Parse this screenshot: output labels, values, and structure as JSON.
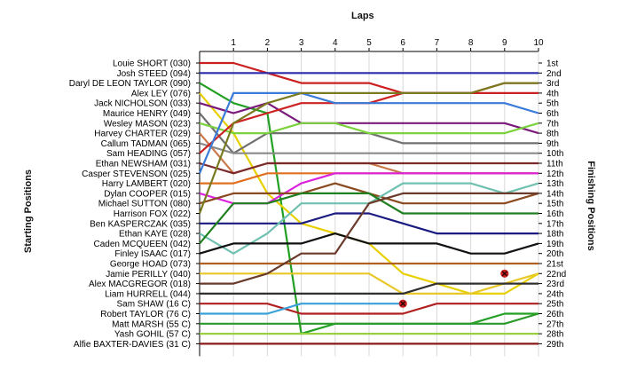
{
  "chart_data": {
    "type": "line",
    "title": "",
    "xlabel": "Laps",
    "ylabel_left": "Starting Positions",
    "ylabel_right": "Finishing Positions",
    "laps": [
      1,
      2,
      3,
      4,
      5,
      6,
      7,
      8,
      9,
      10
    ],
    "starting_labels": [
      "Louie SHORT (030)",
      "Josh STEED (094)",
      "Daryl DE LEON TAYLOR (090)",
      "Alex LEY (076)",
      "Jack NICHOLSON (033)",
      "Maurice HENRY (049)",
      "Wesley MASON (023)",
      "Harvey CHARTER (029)",
      "Callum TADMAN (065)",
      "Sam HEADING (057)",
      "Ethan NEWSHAM (031)",
      "Casper STEVENSON (025)",
      "Harry LAMBERT (020)",
      "Dylan COOPER (015)",
      "Michael SUTTON (080)",
      "Harrison FOX (022)",
      "Ben KASPERCZAK (035)",
      "Ethan KAYE (028)",
      "Caden MCQUEEN (042)",
      "Finley ISAAC (017)",
      "George HOAD (073)",
      "Jamie PERILLY (040)",
      "Alex MACGREGOR (018)",
      "Liam HURRELL (044)",
      "Sam SHAW (16 C)",
      "Robert TAYLOR (76 C)",
      "Matt MARSH (55 C)",
      "Yash GOHIL (57 C)",
      "Alfie BAXTER-DAVIES (31 C)"
    ],
    "finishing_labels": [
      "1st",
      "2nd",
      "3rd",
      "4th",
      "5th",
      "6th",
      "7th",
      "8th",
      "9th",
      "10th",
      "11th",
      "12th",
      "13th",
      "14th",
      "15th",
      "16th",
      "17th",
      "18th",
      "19th",
      "20th",
      "21st",
      "22nd",
      "23rd",
      "24th",
      "25th",
      "26th",
      "27th",
      "28th",
      "29th"
    ],
    "series": [
      {
        "color": "#cc1f1f",
        "positions": [
          1,
          1,
          2,
          3,
          3,
          3,
          4,
          4,
          4,
          4,
          4
        ]
      },
      {
        "color": "#2d2dab",
        "positions": [
          2,
          2,
          2,
          2,
          2,
          2,
          2,
          2,
          2,
          2,
          2
        ]
      },
      {
        "color": "#23a023",
        "positions": [
          3,
          5,
          6,
          28,
          27,
          27,
          27,
          27,
          27,
          26,
          26
        ]
      },
      {
        "color": "#e8d000",
        "positions": [
          4,
          8,
          14,
          17,
          18,
          19,
          22,
          23,
          24,
          24,
          22
        ]
      },
      {
        "color": "#7a1a7a",
        "positions": [
          5,
          6,
          5,
          7,
          7,
          7,
          7,
          7,
          7,
          7,
          8
        ]
      },
      {
        "color": "#707070",
        "positions": [
          6,
          10,
          8,
          8,
          8,
          8,
          9,
          9,
          9,
          9,
          9
        ]
      },
      {
        "color": "#7ad23c",
        "positions": [
          7,
          8,
          8,
          7,
          7,
          8,
          8,
          8,
          8,
          8,
          7
        ]
      },
      {
        "color": "#c9784a",
        "positions": [
          8,
          12,
          11,
          11,
          11,
          11,
          12,
          12,
          12,
          12,
          12
        ]
      },
      {
        "color": "#8a8a8a",
        "positions": [
          9,
          10,
          10,
          10,
          10,
          10,
          10,
          10,
          10,
          10,
          10
        ]
      },
      {
        "color": "#cc2222",
        "positions": [
          10,
          7,
          6,
          5,
          5,
          5,
          4,
          4,
          4,
          3,
          3
        ]
      },
      {
        "color": "#7a2a2a",
        "positions": [
          11,
          12,
          11,
          11,
          11,
          11,
          11,
          11,
          11,
          11,
          11
        ]
      },
      {
        "color": "#3a7ad8",
        "positions": [
          12,
          4,
          4,
          4,
          5,
          5,
          5,
          5,
          5,
          5,
          6
        ]
      },
      {
        "color": "#e07020",
        "positions": [
          13,
          13,
          12,
          12,
          12,
          12,
          12,
          12,
          12,
          12,
          12
        ]
      },
      {
        "color": "#dd22dd",
        "positions": [
          14,
          15,
          15,
          13,
          12,
          12,
          12,
          12,
          12,
          12,
          12
        ]
      },
      {
        "color": "#8a4a20",
        "positions": [
          15,
          14,
          14,
          14,
          13,
          14,
          15,
          15,
          15,
          15,
          14
        ]
      },
      {
        "color": "#7a7a20",
        "positions": [
          16,
          7,
          5,
          4,
          4,
          4,
          4,
          4,
          4,
          3,
          3
        ]
      },
      {
        "color": "#1a1a80",
        "positions": [
          17,
          17,
          17,
          17,
          16,
          16,
          17,
          18,
          18,
          18,
          18
        ]
      },
      {
        "color": "#70c0b0",
        "positions": [
          18,
          20,
          18,
          15,
          15,
          15,
          13,
          13,
          13,
          14,
          13
        ]
      },
      {
        "color": "#208020",
        "positions": [
          19,
          15,
          15,
          14,
          14,
          14,
          16,
          16,
          16,
          16,
          16
        ]
      },
      {
        "color": "#111111",
        "positions": [
          20,
          19,
          19,
          19,
          18,
          19,
          19,
          19,
          20,
          20,
          19
        ]
      },
      {
        "color": "#b06020",
        "positions": [
          21,
          21,
          21,
          21,
          21,
          21,
          21,
          21,
          21,
          21,
          21
        ]
      },
      {
        "color": "#e8c828",
        "positions": [
          22,
          22,
          22,
          22,
          22,
          22,
          24,
          24,
          24,
          23,
          22
        ]
      },
      {
        "color": "#6a3a2a",
        "positions": [
          23,
          23,
          22,
          20,
          20,
          15,
          14,
          14,
          14,
          14,
          14
        ]
      },
      {
        "color": "#303030",
        "positions": [
          24,
          24,
          24,
          24,
          24,
          24,
          24,
          23,
          23,
          23,
          23
        ]
      },
      {
        "color": "#b02020",
        "positions": [
          25,
          25,
          25,
          26,
          26,
          26,
          26,
          25,
          25,
          25,
          25
        ]
      },
      {
        "color": "#3aa0d8",
        "positions": [
          26,
          26,
          26,
          25,
          25,
          25,
          25
        ]
      },
      {
        "color": "#2a9a2a",
        "positions": [
          27,
          27,
          27,
          27,
          27,
          27,
          27,
          27,
          27,
          27,
          26
        ]
      },
      {
        "color": "#9ad040",
        "positions": [
          28,
          28,
          28,
          28,
          28,
          28,
          28,
          28,
          28,
          28,
          28
        ]
      },
      {
        "color": "#8a1a1a",
        "positions": [
          29,
          29,
          29,
          29,
          29,
          29,
          29,
          29,
          29,
          29,
          29
        ]
      }
    ],
    "retirements": [
      {
        "lap": 6,
        "position": 25
      },
      {
        "lap": 9,
        "position": 22
      }
    ],
    "grid": "vertical",
    "legend": "none"
  }
}
